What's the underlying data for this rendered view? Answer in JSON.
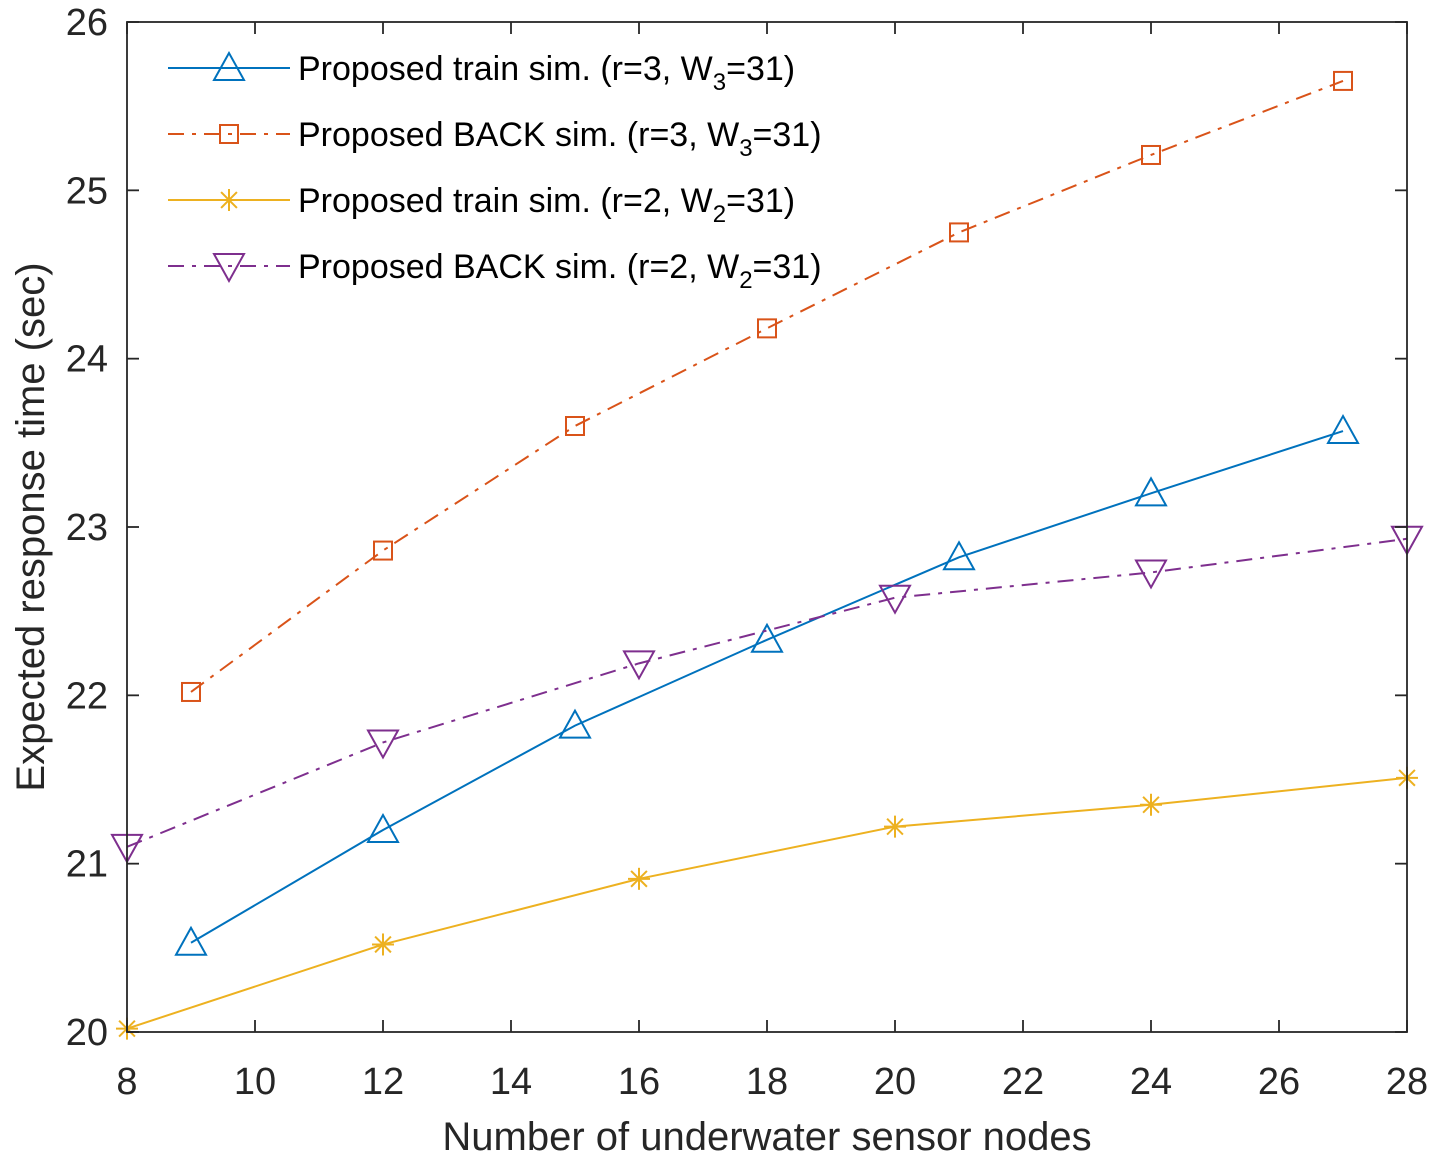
{
  "chart_data": {
    "type": "line",
    "title": "",
    "xlabel": "Number of underwater sensor nodes",
    "ylabel": "Expected response time (sec)",
    "xlim": [
      8,
      28
    ],
    "ylim": [
      20,
      26
    ],
    "xticks": [
      8,
      10,
      12,
      14,
      16,
      18,
      20,
      22,
      24,
      26,
      28
    ],
    "yticks": [
      20,
      21,
      22,
      23,
      24,
      25,
      26
    ],
    "grid": false,
    "legend_position": "top-left",
    "series": [
      {
        "name": "Proposed train sim. (r=3, W3=31)",
        "legend_prefix": "Proposed train sim. (r=3, W",
        "legend_sub": "3",
        "legend_suffix": "=31)",
        "color": "#0072BD",
        "line_style": "solid",
        "marker": "triangle-up",
        "x": [
          9,
          12,
          15,
          18,
          21,
          24,
          27
        ],
        "values": [
          20.53,
          21.2,
          21.82,
          22.33,
          22.82,
          23.2,
          23.57
        ]
      },
      {
        "name": "Proposed BACK sim. (r=3, W3=31)",
        "legend_prefix": "Proposed BACK sim. (r=3, W",
        "legend_sub": "3",
        "legend_suffix": "=31)",
        "color": "#D95319",
        "line_style": "dashdot",
        "marker": "square",
        "x": [
          9,
          12,
          15,
          18,
          21,
          24,
          27
        ],
        "values": [
          22.02,
          22.86,
          23.6,
          24.18,
          24.75,
          25.21,
          25.65
        ]
      },
      {
        "name": "Proposed train sim. (r=2, W2=31)",
        "legend_prefix": "Proposed train sim. (r=2, W",
        "legend_sub": "2",
        "legend_suffix": "=31)",
        "color": "#EDB120",
        "line_style": "solid",
        "marker": "asterisk",
        "x": [
          8,
          12,
          16,
          20,
          24,
          28
        ],
        "values": [
          20.02,
          20.52,
          20.91,
          21.22,
          21.35,
          21.51
        ]
      },
      {
        "name": "Proposed BACK sim. (r=2, W2=31)",
        "legend_prefix": "Proposed BACK sim. (r=2, W",
        "legend_sub": "2",
        "legend_suffix": "=31)",
        "color": "#7E2F8E",
        "line_style": "dashdot",
        "marker": "triangle-down",
        "x": [
          8,
          12,
          16,
          20,
          24,
          28
        ],
        "values": [
          21.1,
          21.72,
          22.19,
          22.58,
          22.73,
          22.93
        ]
      }
    ]
  }
}
